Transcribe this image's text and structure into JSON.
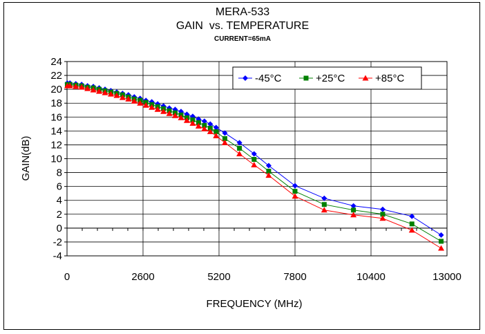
{
  "chart_data": {
    "type": "line",
    "title": "MERA-533",
    "subtitle": "GAIN  vs. TEMPERATURE",
    "condition": "CURRENT=65mA",
    "xlabel": "FREQUENCY (MHz)",
    "ylabel": "GAIN(dB)",
    "xlim": [
      0,
      13000
    ],
    "ylim": [
      -4,
      24
    ],
    "xticks": [
      0,
      2600,
      5200,
      7800,
      10400,
      13000
    ],
    "yticks": [
      -4,
      -2,
      0,
      2,
      4,
      6,
      8,
      10,
      12,
      14,
      16,
      18,
      20,
      22,
      24
    ],
    "grid": true,
    "legend_position": "top-right",
    "x": [
      10,
      100,
      300,
      500,
      700,
      900,
      1100,
      1300,
      1500,
      1700,
      1900,
      2100,
      2300,
      2500,
      2700,
      2900,
      3100,
      3300,
      3500,
      3700,
      3900,
      4100,
      4300,
      4500,
      4700,
      4900,
      5100,
      5400,
      5900,
      6400,
      6900,
      7800,
      8800,
      9800,
      10800,
      11800,
      12800
    ],
    "series": [
      {
        "name": "-45°C",
        "color": "#0000FF",
        "marker": "diamond",
        "values": [
          20.9,
          20.9,
          20.8,
          20.7,
          20.5,
          20.4,
          20.2,
          20.0,
          19.8,
          19.6,
          19.4,
          19.2,
          18.9,
          18.7,
          18.4,
          18.2,
          17.9,
          17.6,
          17.3,
          17.1,
          16.8,
          16.4,
          16.1,
          15.7,
          15.4,
          15.0,
          14.5,
          13.7,
          12.3,
          10.7,
          9.0,
          6.1,
          4.3,
          3.2,
          2.7,
          1.7,
          -1.0
        ]
      },
      {
        "name": "+25°C",
        "color": "#008000",
        "marker": "square",
        "values": [
          20.7,
          20.7,
          20.6,
          20.5,
          20.3,
          20.2,
          20.0,
          19.8,
          19.6,
          19.4,
          19.2,
          18.9,
          18.6,
          18.4,
          18.1,
          17.8,
          17.5,
          17.2,
          16.9,
          16.6,
          16.3,
          15.9,
          15.6,
          15.2,
          14.8,
          14.4,
          13.9,
          12.9,
          11.5,
          9.9,
          8.2,
          5.3,
          3.4,
          2.6,
          2.0,
          0.6,
          -1.9
        ]
      },
      {
        "name": "+85°C",
        "color": "#FF0000",
        "marker": "triangle",
        "values": [
          20.5,
          20.5,
          20.4,
          20.3,
          20.1,
          19.9,
          19.7,
          19.5,
          19.3,
          19.1,
          18.8,
          18.6,
          18.3,
          18.0,
          17.7,
          17.4,
          17.1,
          16.8,
          16.5,
          16.2,
          15.9,
          15.5,
          15.1,
          14.7,
          14.3,
          13.9,
          13.3,
          12.3,
          10.7,
          9.1,
          7.6,
          4.6,
          2.6,
          1.9,
          1.4,
          -0.3,
          -2.9
        ]
      }
    ]
  }
}
